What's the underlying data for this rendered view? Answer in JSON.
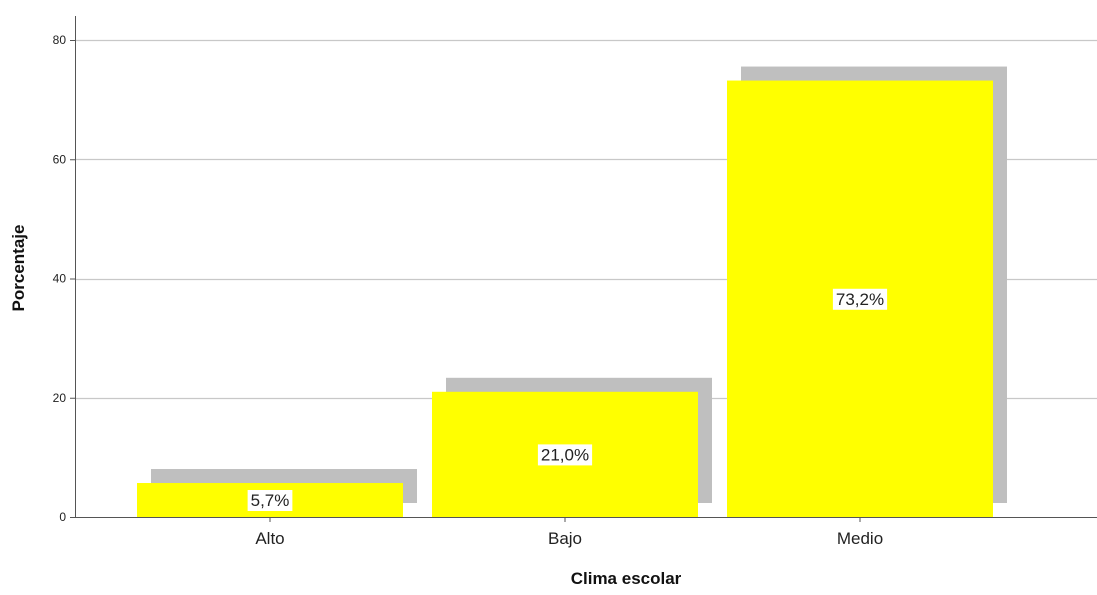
{
  "chart_data": {
    "type": "bar",
    "categories": [
      "Alto",
      "Bajo",
      "Medio"
    ],
    "values": [
      5.7,
      21.0,
      73.2
    ],
    "data_labels": [
      "5,7%",
      "21,0%",
      "73,2%"
    ],
    "xlabel": "Clima escolar",
    "ylabel": "Porcentaje",
    "ylim": [
      0,
      80
    ],
    "yticks": [
      0,
      20,
      40,
      60,
      80
    ],
    "grid": true,
    "bar_color": "#ffff00",
    "shadow_color": "#bfbfbf",
    "grid_color": "#c8c8c8"
  }
}
